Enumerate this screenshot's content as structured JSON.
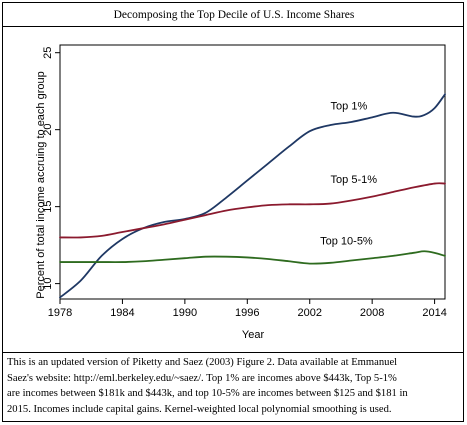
{
  "chart_data": {
    "type": "line",
    "title": "Decomposing the Top Decile of U.S. Income Shares",
    "xlabel": "Year",
    "ylabel": "Percent of total income accruing to each group",
    "xlim": [
      1978,
      2015
    ],
    "ylim": [
      9,
      25.5
    ],
    "x_ticks": [
      1978,
      1984,
      1990,
      1996,
      2002,
      2008,
      2014
    ],
    "y_ticks": [
      10,
      15,
      20,
      25
    ],
    "grid": false,
    "legend": "none",
    "series": [
      {
        "name": "Top 1%",
        "color": "#1f3864",
        "x": [
          1978,
          1980,
          1982,
          1984,
          1986,
          1988,
          1990,
          1992,
          1994,
          1996,
          1998,
          2000,
          2002,
          2004,
          2006,
          2008,
          2010,
          2012,
          2013,
          2014,
          2015
        ],
        "y": [
          9.1,
          10.2,
          11.8,
          12.9,
          13.6,
          14.0,
          14.2,
          14.6,
          15.6,
          16.7,
          17.8,
          18.9,
          19.9,
          20.3,
          20.5,
          20.8,
          21.1,
          20.85,
          20.95,
          21.4,
          22.3
        ]
      },
      {
        "name": "Top 5-1%",
        "color": "#8b1a2e",
        "x": [
          1978,
          1980,
          1982,
          1984,
          1986,
          1988,
          1990,
          1992,
          1994,
          1996,
          1998,
          2000,
          2002,
          2004,
          2006,
          2008,
          2010,
          2012,
          2014,
          2015
        ],
        "y": [
          13.0,
          13.0,
          13.1,
          13.35,
          13.6,
          13.85,
          14.15,
          14.45,
          14.75,
          14.95,
          15.1,
          15.15,
          15.15,
          15.2,
          15.4,
          15.65,
          15.95,
          16.25,
          16.5,
          16.5
        ]
      },
      {
        "name": "Top 10-5%",
        "color": "#2e6b1f",
        "x": [
          1978,
          1980,
          1982,
          1984,
          1986,
          1988,
          1990,
          1992,
          1994,
          1996,
          1998,
          2000,
          2002,
          2004,
          2006,
          2008,
          2010,
          2012,
          2013,
          2014,
          2015
        ],
        "y": [
          11.4,
          11.4,
          11.4,
          11.4,
          11.45,
          11.55,
          11.65,
          11.75,
          11.75,
          11.7,
          11.6,
          11.45,
          11.3,
          11.35,
          11.5,
          11.65,
          11.8,
          12.0,
          12.1,
          12.0,
          11.8
        ]
      }
    ]
  },
  "caption_lines": [
    "This is an updated version of Piketty and Saez (2003) Figure 2. Data available at Emmanuel",
    "Saez's website: http://eml.berkeley.edu/~saez/. Top 1% are incomes above $443k, Top 5-1%",
    "are incomes between $181k and $443k, and top 10-5% are incomes between $125 and $181 in",
    "2015. Incomes include capital gains. Kernel-weighted local polynomial smoothing is used."
  ]
}
